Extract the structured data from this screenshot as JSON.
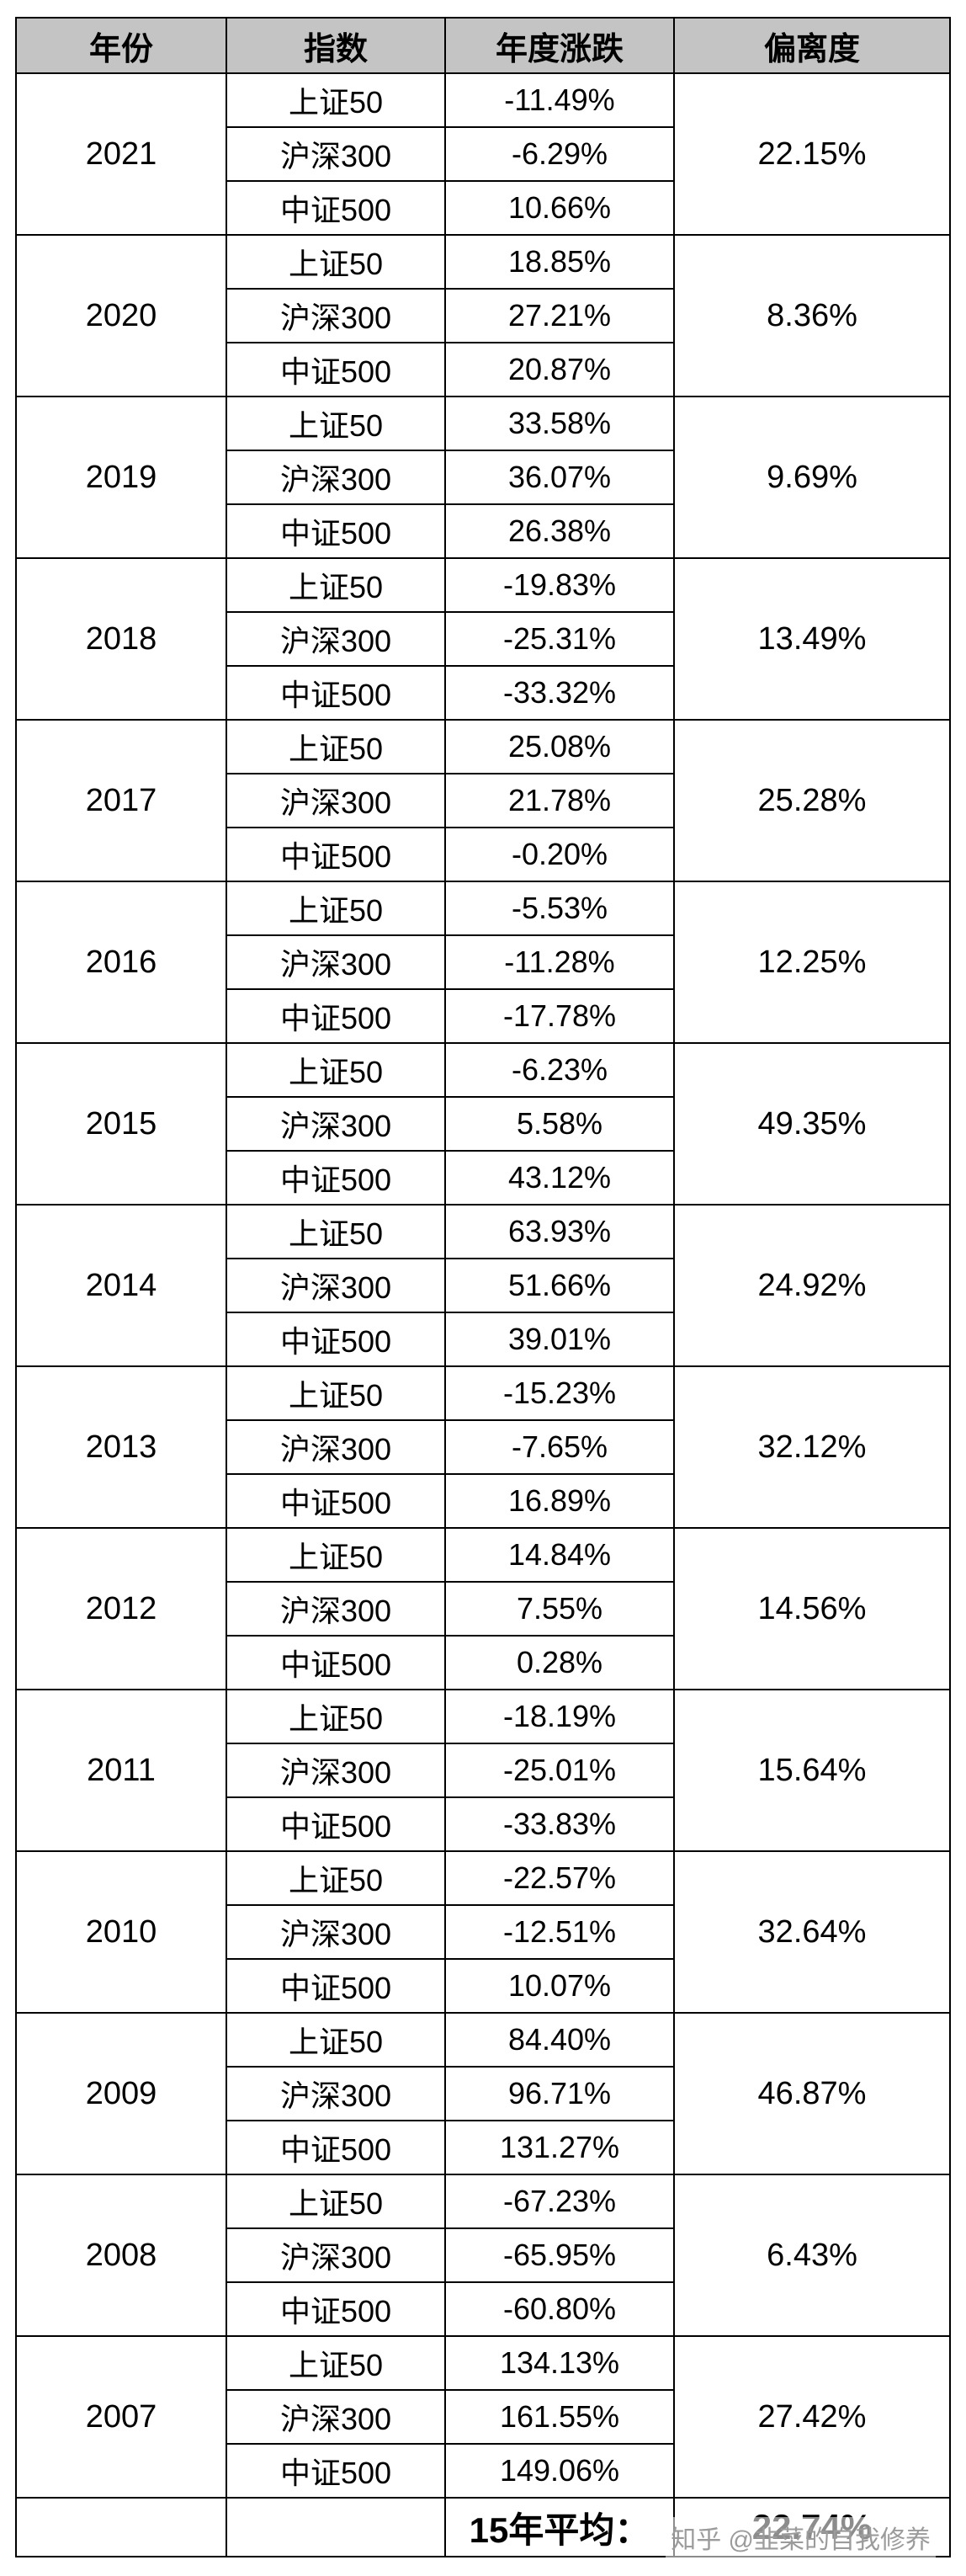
{
  "chart_data": {
    "type": "table",
    "columns": [
      "年份",
      "指数",
      "年度涨跌",
      "偏离度"
    ],
    "indices": [
      "上证50",
      "沪深300",
      "中证500"
    ],
    "years": [
      {
        "year": "2021",
        "changes": [
          "-11.49%",
          "-6.29%",
          "10.66%"
        ],
        "deviation": "22.15%"
      },
      {
        "year": "2020",
        "changes": [
          "18.85%",
          "27.21%",
          "20.87%"
        ],
        "deviation": "8.36%"
      },
      {
        "year": "2019",
        "changes": [
          "33.58%",
          "36.07%",
          "26.38%"
        ],
        "deviation": "9.69%"
      },
      {
        "year": "2018",
        "changes": [
          "-19.83%",
          "-25.31%",
          "-33.32%"
        ],
        "deviation": "13.49%"
      },
      {
        "year": "2017",
        "changes": [
          "25.08%",
          "21.78%",
          "-0.20%"
        ],
        "deviation": "25.28%"
      },
      {
        "year": "2016",
        "changes": [
          "-5.53%",
          "-11.28%",
          "-17.78%"
        ],
        "deviation": "12.25%"
      },
      {
        "year": "2015",
        "changes": [
          "-6.23%",
          "5.58%",
          "43.12%"
        ],
        "deviation": "49.35%"
      },
      {
        "year": "2014",
        "changes": [
          "63.93%",
          "51.66%",
          "39.01%"
        ],
        "deviation": "24.92%"
      },
      {
        "year": "2013",
        "changes": [
          "-15.23%",
          "-7.65%",
          "16.89%"
        ],
        "deviation": "32.12%"
      },
      {
        "year": "2012",
        "changes": [
          "14.84%",
          "7.55%",
          "0.28%"
        ],
        "deviation": "14.56%"
      },
      {
        "year": "2011",
        "changes": [
          "-18.19%",
          "-25.01%",
          "-33.83%"
        ],
        "deviation": "15.64%"
      },
      {
        "year": "2010",
        "changes": [
          "-22.57%",
          "-12.51%",
          "10.07%"
        ],
        "deviation": "32.64%"
      },
      {
        "year": "2009",
        "changes": [
          "84.40%",
          "96.71%",
          "131.27%"
        ],
        "deviation": "46.87%"
      },
      {
        "year": "2008",
        "changes": [
          "-67.23%",
          "-65.95%",
          "-60.80%"
        ],
        "deviation": "6.43%"
      },
      {
        "year": "2007",
        "changes": [
          "134.13%",
          "161.55%",
          "149.06%"
        ],
        "deviation": "27.42%"
      }
    ],
    "footer_label": "15年平均：",
    "footer_value": "22.74%",
    "layout": {
      "header_bg": "#c4c4c4",
      "border_color": "#000000",
      "watermark_color": "#9b9b9b"
    }
  },
  "watermark": {
    "text": "知乎 @韭菜的自我修养"
  }
}
